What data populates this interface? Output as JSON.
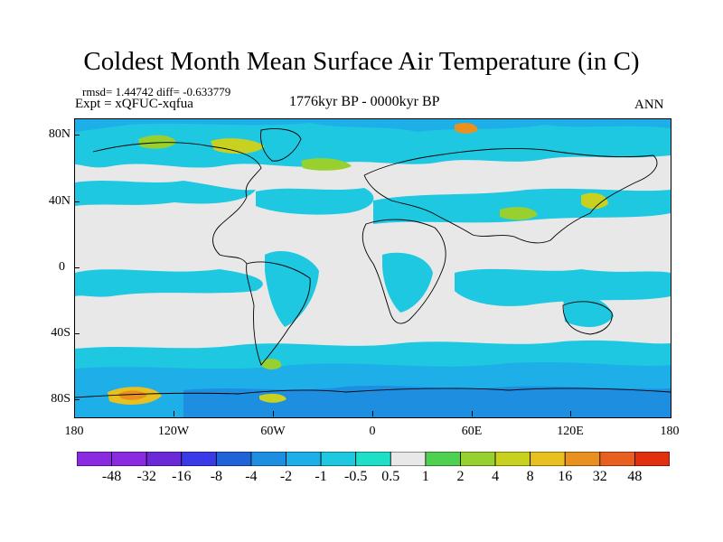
{
  "title": "Coldest Month Mean Surface Air Temperature (in C)",
  "stats": "rmsd= 1.44742 diff= -0.633779",
  "expt": "Expt = xQFUC-xqfua",
  "period": "1776kyr BP - 0000kyr BP",
  "season": "ANN",
  "y_axis_labels": [
    "80N",
    "40N",
    "0",
    "40S",
    "80S"
  ],
  "x_axis_labels": [
    "180",
    "120W",
    "60W",
    "0",
    "60E",
    "120E",
    "180"
  ],
  "colorbar": {
    "labels": [
      "-48",
      "-32",
      "-16",
      "-8",
      "-4",
      "-2",
      "-1",
      "-0.5",
      "0.5",
      "1",
      "2",
      "4",
      "8",
      "16",
      "32",
      "48"
    ],
    "colors": [
      "#8a2be2",
      "#6a2ad8",
      "#3a3ae8",
      "#1e64d8",
      "#1e8ee0",
      "#1eaee8",
      "#1ec8e0",
      "#1ee0c8",
      "#e8e8e8",
      "#50d050",
      "#98d030",
      "#c8d020",
      "#e8c020",
      "#e89020",
      "#e86020",
      "#e03010"
    ]
  }
}
